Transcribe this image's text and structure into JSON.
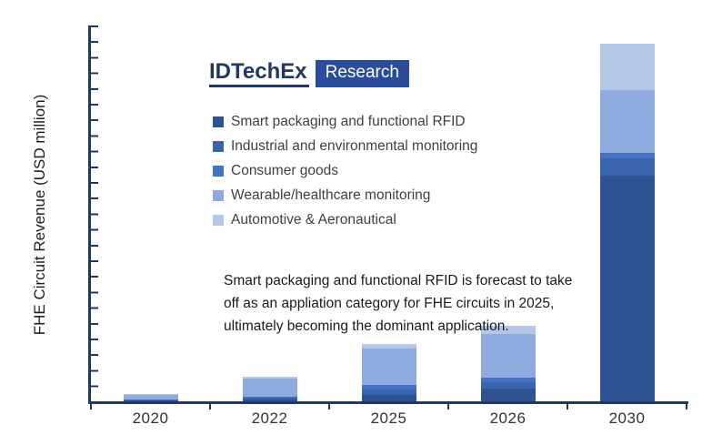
{
  "logo": {
    "brand": "IDTechEx",
    "badge": "Research",
    "badge_color": "#2B4C9B",
    "brand_color": "#1F3864"
  },
  "annotation_lines": [
    "Smart packaging and functional RFID is forecast to take",
    "off as an appliation category for FHE circuits in 2025,",
    "ultimately becoming the dominant application."
  ],
  "chart_data": {
    "type": "bar",
    "stacked": true,
    "title": "",
    "xlabel": "",
    "ylabel": "FHE Circuit Revenue (USD million)",
    "categories": [
      "2020",
      "2022",
      "2025",
      "2026",
      "2030"
    ],
    "series": [
      {
        "name": "Smart packaging and functional RFID",
        "color": "#2E5390",
        "values": [
          2,
          6,
          20,
          41,
          722
        ]
      },
      {
        "name": "Industrial and environmental monitoring",
        "color": "#3A64AB",
        "values": [
          2,
          5,
          17,
          20,
          55
        ]
      },
      {
        "name": "Consumer goods",
        "color": "#4472C4",
        "values": [
          2,
          3,
          15,
          15,
          15
        ]
      },
      {
        "name": "Wearable/healthcare monitoring",
        "color": "#8FAADC",
        "values": [
          15,
          58,
          116,
          139,
          203
        ]
      },
      {
        "name": "Automotive & Aeronautical",
        "color": "#B4C7E7",
        "values": [
          2,
          6,
          15,
          26,
          148
        ]
      }
    ],
    "ylim": [
      0,
      1200
    ],
    "y_tick_step": 50,
    "y_tick_labels_visible": false,
    "grid": false,
    "legend_position": "upper-left",
    "axis_color": "#1F3864"
  }
}
